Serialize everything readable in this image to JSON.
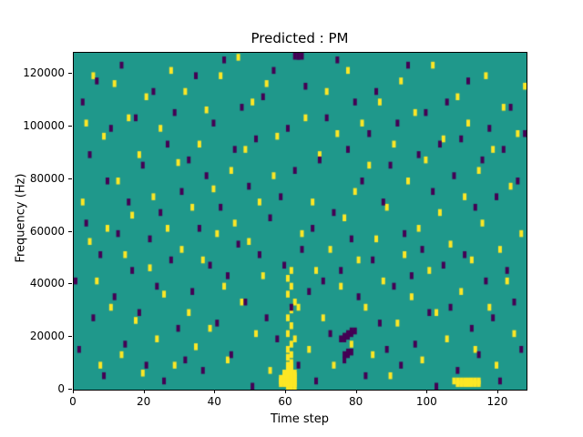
{
  "figure": {
    "title": "Predicted : PM",
    "xlabel": "Time step",
    "ylabel": "Frequency (Hz)"
  },
  "chart_data": {
    "type": "heatmap",
    "title": "Predicted : PM",
    "xlabel": "Time step",
    "ylabel": "Frequency (Hz)",
    "xlim": [
      0,
      128
    ],
    "ylim": [
      0,
      128000
    ],
    "x_ticks": [
      0,
      20,
      40,
      60,
      80,
      100,
      120
    ],
    "y_ticks": [
      0,
      20000,
      40000,
      60000,
      80000,
      100000,
      120000
    ],
    "grid": false,
    "legend": "none",
    "freq_bin_hz": 1000,
    "colormap": {
      "name": "viridis-3-level",
      "background_mid": "#1f988b",
      "high": "#fde725",
      "low": "#440154"
    },
    "cells_high": [
      [
        58,
        1
      ],
      [
        58,
        2
      ],
      [
        58,
        3
      ],
      [
        59,
        1
      ],
      [
        59,
        2
      ],
      [
        59,
        3
      ],
      [
        59,
        4
      ],
      [
        59,
        5
      ],
      [
        60,
        0
      ],
      [
        60,
        1
      ],
      [
        60,
        2
      ],
      [
        60,
        3
      ],
      [
        60,
        4
      ],
      [
        60,
        5
      ],
      [
        60,
        6
      ],
      [
        60,
        7
      ],
      [
        60,
        8
      ],
      [
        61,
        0
      ],
      [
        61,
        1
      ],
      [
        61,
        2
      ],
      [
        61,
        3
      ],
      [
        61,
        4
      ],
      [
        61,
        5
      ],
      [
        61,
        6
      ],
      [
        61,
        7
      ],
      [
        61,
        8
      ],
      [
        61,
        9
      ],
      [
        62,
        0
      ],
      [
        62,
        1
      ],
      [
        62,
        2
      ],
      [
        62,
        3
      ],
      [
        62,
        4
      ],
      [
        62,
        5
      ],
      [
        60,
        11
      ],
      [
        61,
        12
      ],
      [
        60,
        14
      ],
      [
        61,
        16
      ],
      [
        62,
        18
      ],
      [
        60,
        20
      ],
      [
        61,
        23
      ],
      [
        60,
        26
      ],
      [
        61,
        29
      ],
      [
        62,
        32
      ],
      [
        60,
        35
      ],
      [
        61,
        38
      ],
      [
        60,
        41
      ],
      [
        61,
        44
      ],
      [
        107,
        2
      ],
      [
        108,
        2
      ],
      [
        109,
        2
      ],
      [
        110,
        2
      ],
      [
        111,
        2
      ],
      [
        112,
        2
      ],
      [
        113,
        2
      ],
      [
        114,
        2
      ],
      [
        108,
        1
      ],
      [
        109,
        1
      ],
      [
        110,
        1
      ],
      [
        111,
        1
      ],
      [
        112,
        1
      ],
      [
        113,
        1
      ],
      [
        114,
        1
      ],
      [
        2,
        70
      ],
      [
        3,
        100
      ],
      [
        4,
        55
      ],
      [
        5,
        118
      ],
      [
        6,
        40
      ],
      [
        7,
        8
      ],
      [
        8,
        95
      ],
      [
        9,
        60
      ],
      [
        10,
        30
      ],
      [
        11,
        115
      ],
      [
        12,
        78
      ],
      [
        13,
        12
      ],
      [
        14,
        50
      ],
      [
        15,
        102
      ],
      [
        16,
        65
      ],
      [
        17,
        25
      ],
      [
        18,
        88
      ],
      [
        19,
        5
      ],
      [
        20,
        110
      ],
      [
        21,
        45
      ],
      [
        22,
        72
      ],
      [
        23,
        18
      ],
      [
        24,
        98
      ],
      [
        25,
        35
      ],
      [
        26,
        60
      ],
      [
        27,
        120
      ],
      [
        28,
        8
      ],
      [
        29,
        85
      ],
      [
        30,
        52
      ],
      [
        31,
        112
      ],
      [
        32,
        28
      ],
      [
        33,
        68
      ],
      [
        34,
        15
      ],
      [
        35,
        92
      ],
      [
        36,
        48
      ],
      [
        37,
        105
      ],
      [
        38,
        22
      ],
      [
        39,
        75
      ],
      [
        40,
        58
      ],
      [
        41,
        118
      ],
      [
        42,
        38
      ],
      [
        43,
        10
      ],
      [
        44,
        82
      ],
      [
        45,
        62
      ],
      [
        46,
        125
      ],
      [
        47,
        32
      ],
      [
        48,
        90
      ],
      [
        49,
        55
      ],
      [
        50,
        108
      ],
      [
        51,
        20
      ],
      [
        52,
        70
      ],
      [
        53,
        42
      ],
      [
        54,
        115
      ],
      [
        55,
        6
      ],
      [
        56,
        80
      ],
      [
        57,
        95
      ],
      [
        63,
        30
      ],
      [
        64,
        58
      ],
      [
        65,
        102
      ],
      [
        66,
        14
      ],
      [
        67,
        70
      ],
      [
        68,
        44
      ],
      [
        69,
        88
      ],
      [
        70,
        26
      ],
      [
        71,
        112
      ],
      [
        72,
        52
      ],
      [
        73,
        8
      ],
      [
        74,
        96
      ],
      [
        75,
        38
      ],
      [
        76,
        64
      ],
      [
        77,
        120
      ],
      [
        78,
        16
      ],
      [
        79,
        74
      ],
      [
        80,
        48
      ],
      [
        81,
        100
      ],
      [
        82,
        30
      ],
      [
        83,
        84
      ],
      [
        84,
        12
      ],
      [
        85,
        56
      ],
      [
        86,
        108
      ],
      [
        87,
        40
      ],
      [
        88,
        68
      ],
      [
        89,
        4
      ],
      [
        90,
        92
      ],
      [
        91,
        24
      ],
      [
        92,
        116
      ],
      [
        93,
        50
      ],
      [
        94,
        78
      ],
      [
        95,
        34
      ],
      [
        96,
        104
      ],
      [
        97,
        60
      ],
      [
        98,
        10
      ],
      [
        99,
        86
      ],
      [
        100,
        44
      ],
      [
        101,
        122
      ],
      [
        102,
        28
      ],
      [
        103,
        66
      ],
      [
        104,
        94
      ],
      [
        105,
        18
      ],
      [
        106,
        54
      ],
      [
        108,
        110
      ],
      [
        109,
        36
      ],
      [
        110,
        72
      ],
      [
        111,
        100
      ],
      [
        112,
        48
      ],
      [
        113,
        14
      ],
      [
        114,
        82
      ],
      [
        115,
        62
      ],
      [
        116,
        118
      ],
      [
        117,
        30
      ],
      [
        118,
        90
      ],
      [
        119,
        8
      ],
      [
        120,
        52
      ],
      [
        121,
        106
      ],
      [
        122,
        40
      ],
      [
        123,
        76
      ],
      [
        124,
        20
      ],
      [
        125,
        96
      ],
      [
        126,
        58
      ],
      [
        127,
        114
      ]
    ],
    "cells_low": [
      [
        75,
        18
      ],
      [
        76,
        18
      ],
      [
        76,
        19
      ],
      [
        77,
        19
      ],
      [
        77,
        20
      ],
      [
        78,
        20
      ],
      [
        78,
        21
      ],
      [
        79,
        21
      ],
      [
        76,
        12
      ],
      [
        77,
        12
      ],
      [
        77,
        13
      ],
      [
        78,
        13
      ],
      [
        62,
        126
      ],
      [
        63,
        126
      ],
      [
        63,
        127
      ],
      [
        64,
        127
      ],
      [
        0,
        40
      ],
      [
        1,
        14
      ],
      [
        2,
        108
      ],
      [
        3,
        62
      ],
      [
        4,
        88
      ],
      [
        5,
        26
      ],
      [
        6,
        116
      ],
      [
        7,
        50
      ],
      [
        8,
        4
      ],
      [
        9,
        78
      ],
      [
        10,
        98
      ],
      [
        11,
        34
      ],
      [
        12,
        58
      ],
      [
        13,
        122
      ],
      [
        14,
        16
      ],
      [
        15,
        70
      ],
      [
        16,
        44
      ],
      [
        17,
        102
      ],
      [
        18,
        28
      ],
      [
        19,
        84
      ],
      [
        20,
        8
      ],
      [
        21,
        56
      ],
      [
        22,
        112
      ],
      [
        23,
        38
      ],
      [
        24,
        66
      ],
      [
        25,
        2
      ],
      [
        26,
        92
      ],
      [
        27,
        48
      ],
      [
        28,
        104
      ],
      [
        29,
        22
      ],
      [
        30,
        74
      ],
      [
        31,
        10
      ],
      [
        32,
        86
      ],
      [
        33,
        36
      ],
      [
        34,
        118
      ],
      [
        35,
        60
      ],
      [
        36,
        6
      ],
      [
        37,
        80
      ],
      [
        38,
        46
      ],
      [
        39,
        100
      ],
      [
        40,
        24
      ],
      [
        41,
        68
      ],
      [
        42,
        124
      ],
      [
        43,
        42
      ],
      [
        44,
        12
      ],
      [
        45,
        90
      ],
      [
        46,
        54
      ],
      [
        47,
        106
      ],
      [
        48,
        32
      ],
      [
        49,
        76
      ],
      [
        50,
        0
      ],
      [
        51,
        94
      ],
      [
        52,
        50
      ],
      [
        53,
        110
      ],
      [
        54,
        26
      ],
      [
        55,
        64
      ],
      [
        56,
        120
      ],
      [
        57,
        18
      ],
      [
        58,
        72
      ],
      [
        59,
        46
      ],
      [
        60,
        98
      ],
      [
        61,
        30
      ],
      [
        62,
        82
      ],
      [
        63,
        8
      ],
      [
        64,
        52
      ],
      [
        65,
        114
      ],
      [
        66,
        36
      ],
      [
        67,
        60
      ],
      [
        68,
        2
      ],
      [
        69,
        86
      ],
      [
        70,
        40
      ],
      [
        71,
        102
      ],
      [
        72,
        20
      ],
      [
        73,
        66
      ],
      [
        74,
        124
      ],
      [
        75,
        44
      ],
      [
        76,
        10
      ],
      [
        77,
        90
      ],
      [
        78,
        56
      ],
      [
        79,
        108
      ],
      [
        80,
        34
      ],
      [
        81,
        78
      ],
      [
        82,
        4
      ],
      [
        83,
        96
      ],
      [
        84,
        48
      ],
      [
        85,
        112
      ],
      [
        86,
        24
      ],
      [
        87,
        70
      ],
      [
        88,
        14
      ],
      [
        89,
        84
      ],
      [
        90,
        38
      ],
      [
        91,
        100
      ],
      [
        92,
        8
      ],
      [
        93,
        58
      ],
      [
        94,
        122
      ],
      [
        95,
        42
      ],
      [
        96,
        16
      ],
      [
        97,
        88
      ],
      [
        98,
        52
      ],
      [
        99,
        104
      ],
      [
        100,
        28
      ],
      [
        101,
        74
      ],
      [
        102,
        0
      ],
      [
        103,
        92
      ],
      [
        104,
        46
      ],
      [
        105,
        108
      ],
      [
        106,
        30
      ],
      [
        107,
        80
      ],
      [
        108,
        6
      ],
      [
        109,
        94
      ],
      [
        110,
        50
      ],
      [
        111,
        116
      ],
      [
        112,
        22
      ],
      [
        113,
        68
      ],
      [
        114,
        12
      ],
      [
        115,
        86
      ],
      [
        116,
        40
      ],
      [
        117,
        98
      ],
      [
        118,
        26
      ],
      [
        119,
        72
      ],
      [
        120,
        2
      ],
      [
        121,
        90
      ],
      [
        122,
        44
      ],
      [
        123,
        106
      ],
      [
        124,
        32
      ],
      [
        125,
        78
      ],
      [
        126,
        14
      ],
      [
        127,
        96
      ]
    ]
  }
}
